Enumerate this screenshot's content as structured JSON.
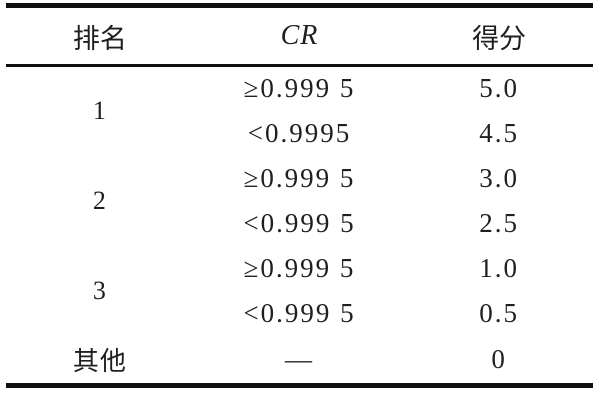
{
  "table": {
    "columns": [
      "排名",
      "CR",
      "得分"
    ],
    "rows": [
      {
        "rank": "1",
        "cr": "≥0.999 5",
        "score": "5.0"
      },
      {
        "cr": "<0.9995",
        "score": "4.5"
      },
      {
        "rank": "2",
        "cr": "≥0.999 5",
        "score": "3.0"
      },
      {
        "cr": "<0.999 5",
        "score": "2.5"
      },
      {
        "rank": "3",
        "cr": "≥0.999 5",
        "score": "1.0"
      },
      {
        "cr": "<0.999 5",
        "score": "0.5"
      },
      {
        "rank": "其他",
        "cr": "—",
        "score": "0"
      }
    ]
  },
  "colors": {
    "rule": "#101010",
    "text": "#1f1f1f",
    "background": "#ffffff"
  }
}
